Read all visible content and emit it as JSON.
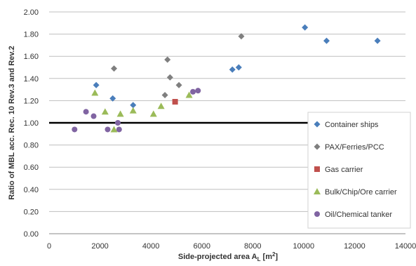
{
  "chart_data": {
    "type": "scatter",
    "xlabel": "Side-projected area A",
    "xlabel_sub": "L",
    "xlabel_unit_open": " [m",
    "xlabel_unit_sup": "2",
    "xlabel_unit_close": "]",
    "ylabel": "Ratio of MBL acc. Rec. 10 Rev.3 and Rev.2",
    "xlim": [
      0,
      14000
    ],
    "ylim": [
      0.0,
      2.0
    ],
    "x_ticks": [
      0,
      2000,
      4000,
      6000,
      8000,
      10000,
      12000,
      14000
    ],
    "x_tick_labels": [
      "0",
      "2000",
      "4000",
      "6000",
      "8000",
      "10000",
      "12000",
      "14000"
    ],
    "y_ticks": [
      0.0,
      0.2,
      0.4,
      0.6,
      0.8,
      1.0,
      1.2,
      1.4,
      1.6,
      1.8,
      2.0
    ],
    "y_tick_labels": [
      "0.00",
      "0.20",
      "0.40",
      "0.60",
      "0.80",
      "1.00",
      "1.20",
      "1.40",
      "1.60",
      "1.80",
      "2.00"
    ],
    "grid": "horizontal",
    "reference_line_y": 1.0,
    "legend_position": "right",
    "series": [
      {
        "name": "Container ships",
        "color": "#4a7ebb",
        "marker": "diamond",
        "points": [
          [
            1850,
            1.34
          ],
          [
            2500,
            1.22
          ],
          [
            3300,
            1.16
          ],
          [
            7200,
            1.48
          ],
          [
            7450,
            1.5
          ],
          [
            10050,
            1.86
          ],
          [
            10900,
            1.74
          ],
          [
            12900,
            1.74
          ]
        ]
      },
      {
        "name": "PAX/Ferries/PCC",
        "color": "#7f7f7f",
        "marker": "diamond",
        "points": [
          [
            2550,
            1.49
          ],
          [
            4550,
            1.25
          ],
          [
            4650,
            1.57
          ],
          [
            4750,
            1.41
          ],
          [
            5100,
            1.34
          ],
          [
            7550,
            1.78
          ]
        ]
      },
      {
        "name": "Gas carrier",
        "color": "#c0504d",
        "marker": "square",
        "points": [
          [
            4950,
            1.19
          ]
        ]
      },
      {
        "name": "Bulk/Chip/Ore carrier",
        "color": "#9bbb59",
        "marker": "triangle",
        "points": [
          [
            1800,
            1.27
          ],
          [
            2200,
            1.1
          ],
          [
            2550,
            0.94
          ],
          [
            2800,
            1.08
          ],
          [
            3300,
            1.11
          ],
          [
            4100,
            1.08
          ],
          [
            4400,
            1.15
          ],
          [
            5500,
            1.25
          ]
        ]
      },
      {
        "name": "Oil/Chemical tanker",
        "color": "#8064a2",
        "marker": "circle",
        "points": [
          [
            1000,
            0.94
          ],
          [
            1450,
            1.1
          ],
          [
            1750,
            1.06
          ],
          [
            2300,
            0.94
          ],
          [
            2700,
            1.0
          ],
          [
            2750,
            0.94
          ],
          [
            5650,
            1.28
          ],
          [
            5850,
            1.29
          ]
        ]
      }
    ]
  }
}
